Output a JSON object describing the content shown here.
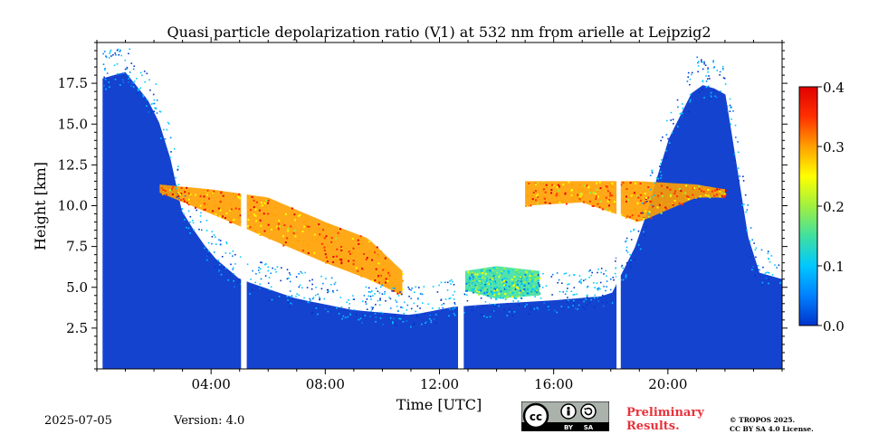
{
  "chart_data": {
    "type": "heatmap",
    "title": "Quasi particle depolarization ratio (V1) at 532 nm from arielle at Leipzig2",
    "xlabel": "Time [UTC]",
    "ylabel": "Height [km]",
    "x_unit": "hours UTC",
    "xlim": [
      0,
      24
    ],
    "ylim": [
      0,
      20
    ],
    "x_ticks": [
      {
        "value": 4,
        "label": "04:00"
      },
      {
        "value": 8,
        "label": "08:00"
      },
      {
        "value": 12,
        "label": "12:00"
      },
      {
        "value": 16,
        "label": "16:00"
      },
      {
        "value": 20,
        "label": "20:00"
      }
    ],
    "y_ticks": [
      {
        "value": 2.5,
        "label": "2.5"
      },
      {
        "value": 5.0,
        "label": "5.0"
      },
      {
        "value": 7.5,
        "label": "7.5"
      },
      {
        "value": 10.0,
        "label": "10.0"
      },
      {
        "value": 12.5,
        "label": "12.5"
      },
      {
        "value": 15.0,
        "label": "15.0"
      },
      {
        "value": 17.5,
        "label": "17.5"
      }
    ],
    "colorbar": {
      "range": [
        0.0,
        0.4
      ],
      "ticks": [
        {
          "value": 0.0,
          "label": "0.0"
        },
        {
          "value": 0.1,
          "label": "0.1"
        },
        {
          "value": 0.2,
          "label": "0.2"
        },
        {
          "value": 0.3,
          "label": "0.3"
        },
        {
          "value": 0.4,
          "label": "0.4"
        }
      ],
      "colormap": [
        "#0033cc",
        "#0080ff",
        "#00c8ff",
        "#40e0a0",
        "#a0f040",
        "#ffff00",
        "#ffa000",
        "#ff3000",
        "#e00000"
      ]
    },
    "data_gaps_hours": [
      [
        0.0,
        0.1
      ],
      [
        5.05,
        5.25
      ],
      [
        12.65,
        12.85
      ],
      [
        18.2,
        18.35
      ]
    ],
    "regions": [
      {
        "kind": "boundary_layer",
        "t_start": 0.2,
        "t_end": 24,
        "h_bottom": 0,
        "h_top_profile": [
          [
            0.2,
            17.8
          ],
          [
            1.0,
            18.2
          ],
          [
            2.0,
            16.0
          ],
          [
            2.5,
            13.5
          ],
          [
            3.0,
            9.5
          ],
          [
            4.0,
            7.0
          ],
          [
            5.0,
            5.5
          ],
          [
            7.0,
            4.3
          ],
          [
            9.0,
            3.6
          ],
          [
            11.0,
            3.3
          ],
          [
            12.5,
            3.8
          ],
          [
            14.0,
            4.0
          ],
          [
            16.0,
            4.2
          ],
          [
            18.0,
            4.5
          ],
          [
            19.0,
            8.0
          ],
          [
            20.0,
            14.0
          ],
          [
            21.0,
            17.5
          ],
          [
            22.0,
            17.0
          ],
          [
            23.0,
            6.0
          ],
          [
            24.0,
            5.5
          ]
        ],
        "value": 0.02
      },
      {
        "kind": "aerosol_cirrus",
        "t_start": 2.2,
        "t_end": 10.7,
        "h_top_profile": [
          [
            2.2,
            11.3
          ],
          [
            4.0,
            11.0
          ],
          [
            6.0,
            10.5
          ],
          [
            8.0,
            9.0
          ],
          [
            9.5,
            8.0
          ],
          [
            10.7,
            6.0
          ]
        ],
        "h_bottom_profile": [
          [
            2.2,
            10.8
          ],
          [
            4.0,
            9.5
          ],
          [
            6.0,
            8.0
          ],
          [
            8.0,
            6.5
          ],
          [
            9.5,
            5.5
          ],
          [
            10.7,
            4.5
          ]
        ],
        "value": 0.32
      },
      {
        "kind": "cirrus_evening",
        "t_start": 15.0,
        "t_end": 22.0,
        "h_top_profile": [
          [
            15.0,
            11.5
          ],
          [
            17.0,
            11.5
          ],
          [
            19.0,
            11.5
          ],
          [
            21.0,
            11.3
          ],
          [
            22.0,
            11.0
          ]
        ],
        "h_bottom_profile": [
          [
            15.0,
            10.0
          ],
          [
            17.0,
            10.2
          ],
          [
            19.0,
            9.0
          ],
          [
            21.0,
            10.5
          ],
          [
            22.0,
            10.5
          ]
        ],
        "value": 0.3
      },
      {
        "kind": "low_cloud_midday",
        "t_start": 12.9,
        "t_end": 15.5,
        "h_top_profile": [
          [
            12.9,
            6.0
          ],
          [
            14.0,
            6.3
          ],
          [
            15.5,
            6.0
          ]
        ],
        "h_bottom_profile": [
          [
            12.9,
            4.8
          ],
          [
            14.0,
            4.3
          ],
          [
            15.5,
            4.5
          ]
        ],
        "value": 0.15
      }
    ]
  },
  "footer": {
    "date": "2025-07-05",
    "version": "Version: 4.0",
    "preliminary_line1": "Preliminary",
    "preliminary_line2": "Results.",
    "license_line1": "© TROPOS 2025.",
    "license_line2": "CC BY SA 4.0 License.",
    "cc_badge": {
      "by": "BY",
      "sa": "SA"
    }
  }
}
